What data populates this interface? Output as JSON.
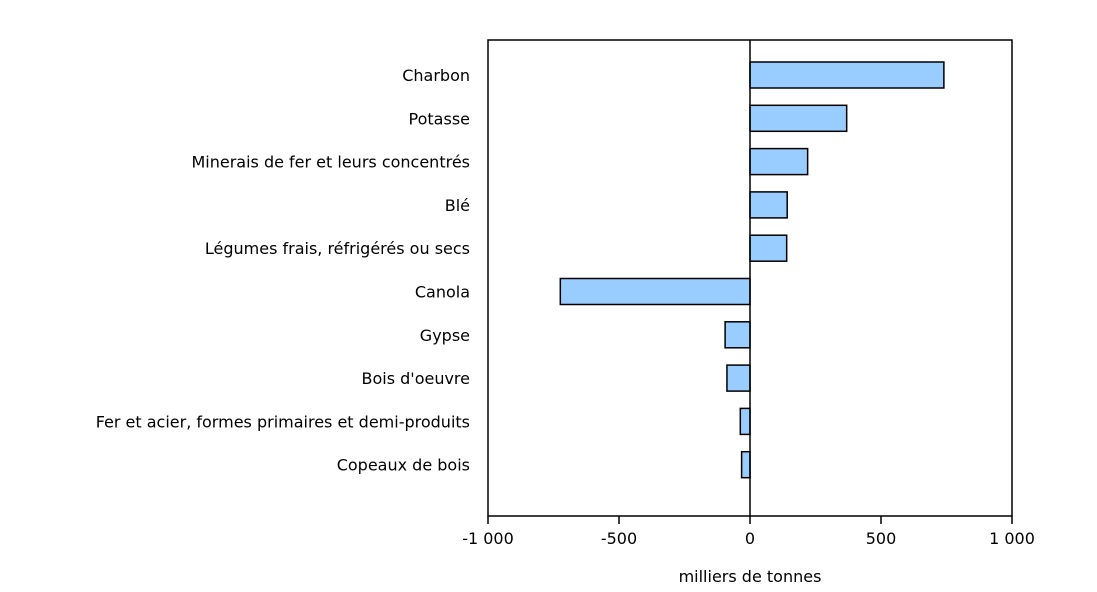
{
  "chart_data": {
    "type": "bar",
    "orientation": "horizontal",
    "categories": [
      "Charbon",
      "Potasse",
      "Minerais de fer et leurs concentrés",
      "Blé",
      "Légumes frais, réfrigérés ou secs",
      "Canola",
      "Gypse",
      "Bois d'oeuvre",
      "Fer et acier, formes primaires et demi-produits",
      "Copeaux de bois"
    ],
    "values": [
      740,
      369,
      220,
      142,
      140,
      -724,
      -95,
      -88,
      -37,
      -32
    ],
    "xlabel": "milliers de tonnes",
    "xlim": [
      -1000,
      1000
    ],
    "xticks": [
      -1000,
      -500,
      0,
      500,
      1000
    ],
    "xtick_labels": [
      "-1 000",
      "-500",
      "0",
      "500",
      "1 000"
    ],
    "grid": false,
    "bar_color": "#99ccff",
    "bar_edge_color": "#000000"
  }
}
